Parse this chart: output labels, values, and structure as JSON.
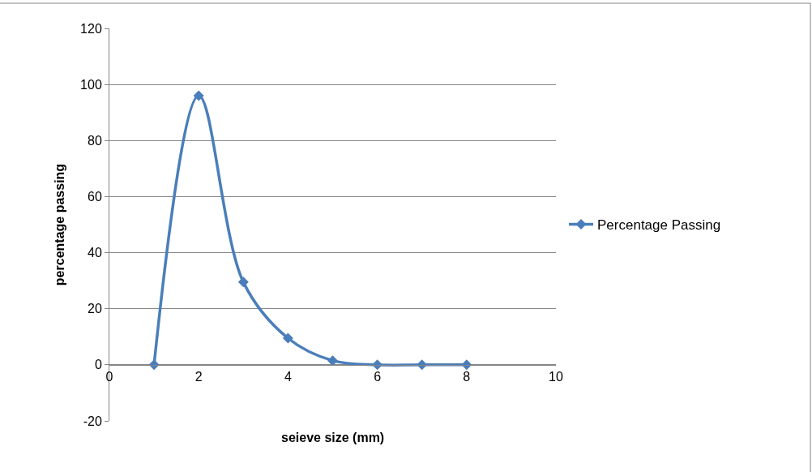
{
  "chart_data": {
    "type": "line",
    "xlabel": "seieve size (mm)",
    "ylabel": "percentage passing",
    "x": [
      1,
      2,
      3,
      4,
      5,
      6,
      7,
      8
    ],
    "series": [
      {
        "name": "Percentage Passing",
        "color": "#4a7ebb",
        "values": [
          0,
          96,
          29.5,
          9.5,
          1.5,
          0,
          0,
          0
        ]
      }
    ],
    "xlim": [
      0,
      10
    ],
    "xticks": [
      0,
      2,
      4,
      6,
      8,
      10
    ],
    "ylim": [
      -20,
      120
    ],
    "yticks": [
      -20,
      0,
      20,
      40,
      60,
      80,
      100,
      120
    ],
    "grid": "y",
    "legend": "right",
    "marker": "diamond",
    "line_style": "solid"
  }
}
